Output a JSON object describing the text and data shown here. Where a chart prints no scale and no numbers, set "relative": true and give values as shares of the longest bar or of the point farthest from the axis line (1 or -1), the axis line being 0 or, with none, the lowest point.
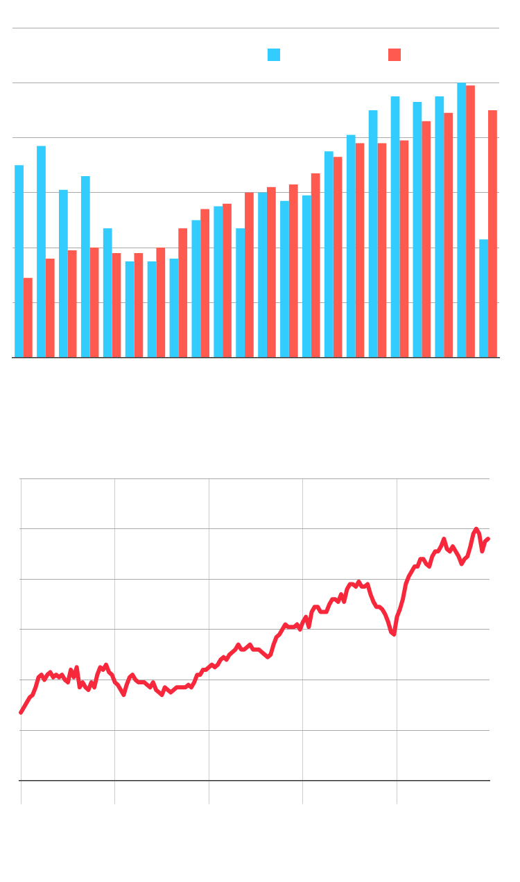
{
  "chart_data": [
    {
      "type": "bar",
      "relative": true,
      "grid": "y",
      "categories": [
        null,
        null,
        null,
        null,
        null,
        null,
        null,
        null,
        null,
        null,
        null,
        null,
        null,
        null,
        null,
        null,
        null,
        null,
        null,
        null,
        null,
        null
      ],
      "series": [
        {
          "color": "#33ccff",
          "values": [
            0.7,
            0.77,
            0.61,
            0.66,
            0.47,
            0.35,
            0.35,
            0.36,
            0.5,
            0.55,
            0.47,
            0.6,
            0.57,
            0.59,
            0.75,
            0.81,
            0.9,
            0.95,
            0.93,
            0.95,
            1,
            0.43
          ]
        },
        {
          "color": "#ff5a50",
          "values": [
            0.29,
            0.36,
            0.39,
            0.4,
            0.38,
            0.38,
            0.4,
            0.47,
            0.54,
            0.56,
            0.6,
            0.62,
            0.63,
            0.67,
            0.73,
            0.78,
            0.78,
            0.79,
            0.86,
            0.89,
            0.99,
            0.9
          ]
        }
      ]
    },
    {
      "type": "line",
      "relative": true,
      "grid": true,
      "color": "#f8283c",
      "categories": [
        null,
        null,
        null,
        null,
        null,
        null,
        null,
        null,
        null,
        null,
        null,
        null,
        null,
        null,
        null,
        null,
        null,
        null,
        null,
        null,
        null,
        null,
        null,
        null,
        null,
        null,
        null,
        null,
        null,
        null,
        null,
        null,
        null,
        null,
        null,
        null,
        null,
        null,
        null,
        null,
        null,
        null,
        null,
        null,
        null,
        null,
        null,
        null,
        null,
        null,
        null,
        null,
        null,
        null,
        null,
        null,
        null,
        null,
        null,
        null,
        null,
        null,
        null,
        null,
        null,
        null,
        null,
        null,
        null,
        null,
        null,
        null,
        null,
        null,
        null,
        null,
        null,
        null,
        null,
        null,
        null,
        null,
        null,
        null,
        null,
        null,
        null,
        null,
        null,
        null,
        null,
        null,
        null,
        null,
        null,
        null,
        null,
        null,
        null,
        null,
        null,
        null,
        null,
        null,
        null,
        null,
        null,
        null,
        null,
        null,
        null,
        null,
        null,
        null,
        null,
        null,
        null,
        null,
        null,
        null,
        null,
        null,
        null,
        null,
        null,
        null,
        null,
        null,
        null,
        null,
        null,
        null,
        null,
        null,
        null,
        null,
        null,
        null,
        null,
        null,
        null,
        null,
        null,
        null,
        null,
        null,
        null,
        null,
        null,
        null,
        null,
        null,
        null,
        null,
        null,
        null,
        null,
        null,
        null,
        null
      ],
      "values": [
        0.27,
        0.29,
        0.31,
        0.33,
        0.34,
        0.37,
        0.41,
        0.42,
        0.4,
        0.42,
        0.43,
        0.41,
        0.42,
        0.41,
        0.42,
        0.4,
        0.39,
        0.44,
        0.41,
        0.45,
        0.37,
        0.39,
        0.37,
        0.36,
        0.39,
        0.37,
        0.42,
        0.45,
        0.44,
        0.46,
        0.43,
        0.42,
        0.39,
        0.38,
        0.36,
        0.34,
        0.38,
        0.41,
        0.42,
        0.4,
        0.39,
        0.39,
        0.39,
        0.38,
        0.37,
        0.39,
        0.36,
        0.35,
        0.34,
        0.37,
        0.36,
        0.35,
        0.36,
        0.37,
        0.37,
        0.37,
        0.37,
        0.38,
        0.37,
        0.39,
        0.42,
        0.42,
        0.44,
        0.44,
        0.45,
        0.46,
        0.45,
        0.46,
        0.48,
        0.49,
        0.48,
        0.5,
        0.51,
        0.52,
        0.54,
        0.52,
        0.52,
        0.53,
        0.54,
        0.52,
        0.52,
        0.52,
        0.51,
        0.5,
        0.49,
        0.5,
        0.54,
        0.57,
        0.58,
        0.6,
        0.62,
        0.61,
        0.61,
        0.61,
        0.62,
        0.6,
        0.63,
        0.65,
        0.61,
        0.67,
        0.69,
        0.69,
        0.67,
        0.67,
        0.67,
        0.7,
        0.72,
        0.72,
        0.71,
        0.74,
        0.71,
        0.76,
        0.78,
        0.78,
        0.77,
        0.79,
        0.77,
        0.77,
        0.78,
        0.74,
        0.71,
        0.69,
        0.69,
        0.68,
        0.66,
        0.63,
        0.59,
        0.58,
        0.65,
        0.68,
        0.72,
        0.78,
        0.81,
        0.83,
        0.85,
        0.85,
        0.88,
        0.88,
        0.86,
        0.85,
        0.89,
        0.91,
        0.91,
        0.93,
        0.96,
        0.92,
        0.91,
        0.93,
        0.91,
        0.89,
        0.86,
        0.88,
        0.89,
        0.93,
        0.98,
        1,
        0.98,
        0.91,
        0.95,
        0.96
      ]
    }
  ]
}
